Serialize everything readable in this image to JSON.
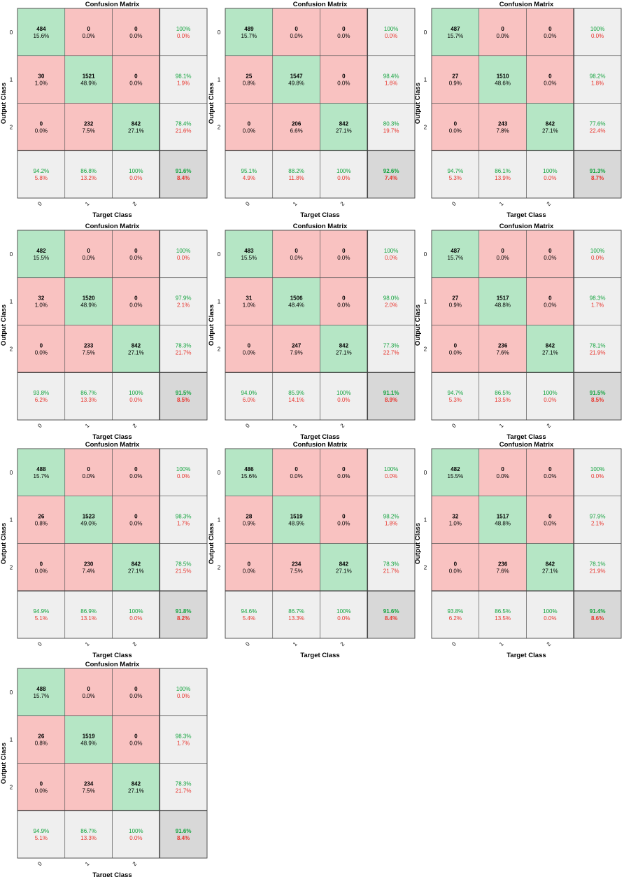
{
  "colors": {
    "correct": "#b5e6c5",
    "incorrect": "#f9c2c1",
    "summary": "#efefef",
    "overall": "#d8d8d8",
    "grid": "#555555",
    "frame": "#444444",
    "pct_good": "#12a33d",
    "pct_bad": "#e8342c",
    "text": "#000000"
  },
  "chart_data": [
    {
      "type": "heatmap",
      "title": "Confusion Matrix",
      "xlabel": "Target Class",
      "ylabel": "Output Class",
      "classes": [
        "0",
        "1",
        "2"
      ],
      "counts": [
        [
          484,
          0,
          0
        ],
        [
          30,
          1521,
          0
        ],
        [
          0,
          232,
          842
        ]
      ],
      "cell_percent": [
        [
          "15.6%",
          "0.0%",
          "0.0%"
        ],
        [
          "1.0%",
          "48.9%",
          "0.0%"
        ],
        [
          "0.0%",
          "7.5%",
          "27.1%"
        ]
      ],
      "row_summary": [
        [
          "100%",
          "0.0%"
        ],
        [
          "98.1%",
          "1.9%"
        ],
        [
          "78.4%",
          "21.6%"
        ]
      ],
      "col_summary": [
        [
          "94.2%",
          "5.8%"
        ],
        [
          "86.8%",
          "13.2%"
        ],
        [
          "100%",
          "0.0%"
        ]
      ],
      "overall": [
        "91.6%",
        "8.4%"
      ]
    },
    {
      "type": "heatmap",
      "title": "Confusion Matrix",
      "xlabel": "Target Class",
      "ylabel": "Output Class",
      "classes": [
        "0",
        "1",
        "2"
      ],
      "counts": [
        [
          489,
          0,
          0
        ],
        [
          25,
          1547,
          0
        ],
        [
          0,
          206,
          842
        ]
      ],
      "cell_percent": [
        [
          "15.7%",
          "0.0%",
          "0.0%"
        ],
        [
          "0.8%",
          "49.8%",
          "0.0%"
        ],
        [
          "0.0%",
          "6.6%",
          "27.1%"
        ]
      ],
      "row_summary": [
        [
          "100%",
          "0.0%"
        ],
        [
          "98.4%",
          "1.6%"
        ],
        [
          "80.3%",
          "19.7%"
        ]
      ],
      "col_summary": [
        [
          "95.1%",
          "4.9%"
        ],
        [
          "88.2%",
          "11.8%"
        ],
        [
          "100%",
          "0.0%"
        ]
      ],
      "overall": [
        "92.6%",
        "7.4%"
      ]
    },
    {
      "type": "heatmap",
      "title": "Confusion Matrix",
      "xlabel": "Target Class",
      "ylabel": "Output Class",
      "classes": [
        "0",
        "1",
        "2"
      ],
      "counts": [
        [
          487,
          0,
          0
        ],
        [
          27,
          1510,
          0
        ],
        [
          0,
          243,
          842
        ]
      ],
      "cell_percent": [
        [
          "15.7%",
          "0.0%",
          "0.0%"
        ],
        [
          "0.9%",
          "48.6%",
          "0.0%"
        ],
        [
          "0.0%",
          "7.8%",
          "27.1%"
        ]
      ],
      "row_summary": [
        [
          "100%",
          "0.0%"
        ],
        [
          "98.2%",
          "1.8%"
        ],
        [
          "77.6%",
          "22.4%"
        ]
      ],
      "col_summary": [
        [
          "94.7%",
          "5.3%"
        ],
        [
          "86.1%",
          "13.9%"
        ],
        [
          "100%",
          "0.0%"
        ]
      ],
      "overall": [
        "91.3%",
        "8.7%"
      ]
    },
    {
      "type": "heatmap",
      "title": "Confusion Matrix",
      "xlabel": "Target Class",
      "ylabel": "Output Class",
      "classes": [
        "0",
        "1",
        "2"
      ],
      "counts": [
        [
          482,
          0,
          0
        ],
        [
          32,
          1520,
          0
        ],
        [
          0,
          233,
          842
        ]
      ],
      "cell_percent": [
        [
          "15.5%",
          "0.0%",
          "0.0%"
        ],
        [
          "1.0%",
          "48.9%",
          "0.0%"
        ],
        [
          "0.0%",
          "7.5%",
          "27.1%"
        ]
      ],
      "row_summary": [
        [
          "100%",
          "0.0%"
        ],
        [
          "97.9%",
          "2.1%"
        ],
        [
          "78.3%",
          "21.7%"
        ]
      ],
      "col_summary": [
        [
          "93.8%",
          "6.2%"
        ],
        [
          "86.7%",
          "13.3%"
        ],
        [
          "100%",
          "0.0%"
        ]
      ],
      "overall": [
        "91.5%",
        "8.5%"
      ]
    },
    {
      "type": "heatmap",
      "title": "Confusion Matrix",
      "xlabel": "Target Class",
      "ylabel": "Output Class",
      "classes": [
        "0",
        "1",
        "2"
      ],
      "counts": [
        [
          483,
          0,
          0
        ],
        [
          31,
          1506,
          0
        ],
        [
          0,
          247,
          842
        ]
      ],
      "cell_percent": [
        [
          "15.5%",
          "0.0%",
          "0.0%"
        ],
        [
          "1.0%",
          "48.4%",
          "0.0%"
        ],
        [
          "0.0%",
          "7.9%",
          "27.1%"
        ]
      ],
      "row_summary": [
        [
          "100%",
          "0.0%"
        ],
        [
          "98.0%",
          "2.0%"
        ],
        [
          "77.3%",
          "22.7%"
        ]
      ],
      "col_summary": [
        [
          "94.0%",
          "6.0%"
        ],
        [
          "85.9%",
          "14.1%"
        ],
        [
          "100%",
          "0.0%"
        ]
      ],
      "overall": [
        "91.1%",
        "8.9%"
      ]
    },
    {
      "type": "heatmap",
      "title": "Confusion Matrix",
      "xlabel": "Target Class",
      "ylabel": "Output Class",
      "classes": [
        "0",
        "1",
        "2"
      ],
      "counts": [
        [
          487,
          0,
          0
        ],
        [
          27,
          1517,
          0
        ],
        [
          0,
          236,
          842
        ]
      ],
      "cell_percent": [
        [
          "15.7%",
          "0.0%",
          "0.0%"
        ],
        [
          "0.9%",
          "48.8%",
          "0.0%"
        ],
        [
          "0.0%",
          "7.6%",
          "27.1%"
        ]
      ],
      "row_summary": [
        [
          "100%",
          "0.0%"
        ],
        [
          "98.3%",
          "1.7%"
        ],
        [
          "78.1%",
          "21.9%"
        ]
      ],
      "col_summary": [
        [
          "94.7%",
          "5.3%"
        ],
        [
          "86.5%",
          "13.5%"
        ],
        [
          "100%",
          "0.0%"
        ]
      ],
      "overall": [
        "91.5%",
        "8.5%"
      ]
    },
    {
      "type": "heatmap",
      "title": "Confusion Matrix",
      "xlabel": "Target Class",
      "ylabel": "Output Class",
      "classes": [
        "0",
        "1",
        "2"
      ],
      "counts": [
        [
          488,
          0,
          0
        ],
        [
          26,
          1523,
          0
        ],
        [
          0,
          230,
          842
        ]
      ],
      "cell_percent": [
        [
          "15.7%",
          "0.0%",
          "0.0%"
        ],
        [
          "0.8%",
          "49.0%",
          "0.0%"
        ],
        [
          "0.0%",
          "7.4%",
          "27.1%"
        ]
      ],
      "row_summary": [
        [
          "100%",
          "0.0%"
        ],
        [
          "98.3%",
          "1.7%"
        ],
        [
          "78.5%",
          "21.5%"
        ]
      ],
      "col_summary": [
        [
          "94.9%",
          "5.1%"
        ],
        [
          "86.9%",
          "13.1%"
        ],
        [
          "100%",
          "0.0%"
        ]
      ],
      "overall": [
        "91.8%",
        "8.2%"
      ]
    },
    {
      "type": "heatmap",
      "title": "Confusion Matrix",
      "xlabel": "Target Class",
      "ylabel": "Output Class",
      "classes": [
        "0",
        "1",
        "2"
      ],
      "counts": [
        [
          486,
          0,
          0
        ],
        [
          28,
          1519,
          0
        ],
        [
          0,
          234,
          842
        ]
      ],
      "cell_percent": [
        [
          "15.6%",
          "0.0%",
          "0.0%"
        ],
        [
          "0.9%",
          "48.9%",
          "0.0%"
        ],
        [
          "0.0%",
          "7.5%",
          "27.1%"
        ]
      ],
      "row_summary": [
        [
          "100%",
          "0.0%"
        ],
        [
          "98.2%",
          "1.8%"
        ],
        [
          "78.3%",
          "21.7%"
        ]
      ],
      "col_summary": [
        [
          "94.6%",
          "5.4%"
        ],
        [
          "86.7%",
          "13.3%"
        ],
        [
          "100%",
          "0.0%"
        ]
      ],
      "overall": [
        "91.6%",
        "8.4%"
      ]
    },
    {
      "type": "heatmap",
      "title": "Confusion Matrix",
      "xlabel": "Target Class",
      "ylabel": "Output Class",
      "classes": [
        "0",
        "1",
        "2"
      ],
      "counts": [
        [
          482,
          0,
          0
        ],
        [
          32,
          1517,
          0
        ],
        [
          0,
          236,
          842
        ]
      ],
      "cell_percent": [
        [
          "15.5%",
          "0.0%",
          "0.0%"
        ],
        [
          "1.0%",
          "48.8%",
          "0.0%"
        ],
        [
          "0.0%",
          "7.6%",
          "27.1%"
        ]
      ],
      "row_summary": [
        [
          "100%",
          "0.0%"
        ],
        [
          "97.9%",
          "2.1%"
        ],
        [
          "78.1%",
          "21.9%"
        ]
      ],
      "col_summary": [
        [
          "93.8%",
          "6.2%"
        ],
        [
          "86.5%",
          "13.5%"
        ],
        [
          "100%",
          "0.0%"
        ]
      ],
      "overall": [
        "91.4%",
        "8.6%"
      ]
    },
    {
      "type": "heatmap",
      "title": "Confusion Matrix",
      "xlabel": "Target Class",
      "ylabel": "Output Class",
      "classes": [
        "0",
        "1",
        "2"
      ],
      "counts": [
        [
          488,
          0,
          0
        ],
        [
          26,
          1519,
          0
        ],
        [
          0,
          234,
          842
        ]
      ],
      "cell_percent": [
        [
          "15.7%",
          "0.0%",
          "0.0%"
        ],
        [
          "0.8%",
          "48.9%",
          "0.0%"
        ],
        [
          "0.0%",
          "7.5%",
          "27.1%"
        ]
      ],
      "row_summary": [
        [
          "100%",
          "0.0%"
        ],
        [
          "98.3%",
          "1.7%"
        ],
        [
          "78.3%",
          "21.7%"
        ]
      ],
      "col_summary": [
        [
          "94.9%",
          "5.1%"
        ],
        [
          "86.7%",
          "13.3%"
        ],
        [
          "100%",
          "0.0%"
        ]
      ],
      "overall": [
        "91.6%",
        "8.4%"
      ]
    }
  ]
}
